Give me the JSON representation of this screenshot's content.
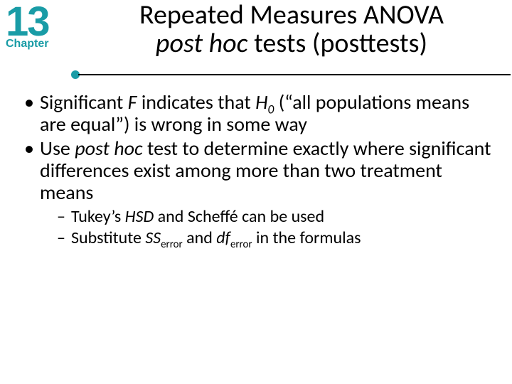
{
  "colors": {
    "teal": "#199ca6",
    "black": "#000000",
    "white": "#ffffff",
    "rule": "#000000"
  },
  "typography": {
    "chapter_num_size": 58,
    "chapter_word_size": 16,
    "title_size": 38,
    "body_size": 28,
    "sub_bullet_size": 24
  },
  "chapter": {
    "number": "13",
    "label": "Chapter"
  },
  "title": {
    "line1": "Repeated Measures ANOVA",
    "line2_italic": "post hoc",
    "line2_rest": " tests (posttests)"
  },
  "rule": {
    "dot_diameter": 12,
    "line_height": 2
  },
  "bullets": [
    {
      "segments": [
        {
          "t": "Significant "
        },
        {
          "t": "F",
          "italic": true
        },
        {
          "t": " indicates that "
        },
        {
          "t": "H",
          "italic": true
        },
        {
          "t": "0",
          "italic": true,
          "sub": true
        },
        {
          "t": " (“all populations means are equal”) is wrong in some way"
        }
      ]
    },
    {
      "segments": [
        {
          "t": "Use "
        },
        {
          "t": "post hoc",
          "italic": true
        },
        {
          "t": " test to determine exactly where significant differences exist among more than two  treatment means"
        }
      ],
      "children": [
        {
          "segments": [
            {
              "t": "Tukey’s "
            },
            {
              "t": "HSD",
              "italic": true
            },
            {
              "t": " and  Scheffé can be used"
            }
          ]
        },
        {
          "segments": [
            {
              "t": "Substitute "
            },
            {
              "t": "SS",
              "italic": true
            },
            {
              "t": "error",
              "sub": true
            },
            {
              "t": " and "
            },
            {
              "t": "df",
              "italic": true
            },
            {
              "t": "error",
              "sub": true
            },
            {
              "t": " in the formulas"
            }
          ]
        }
      ]
    }
  ]
}
